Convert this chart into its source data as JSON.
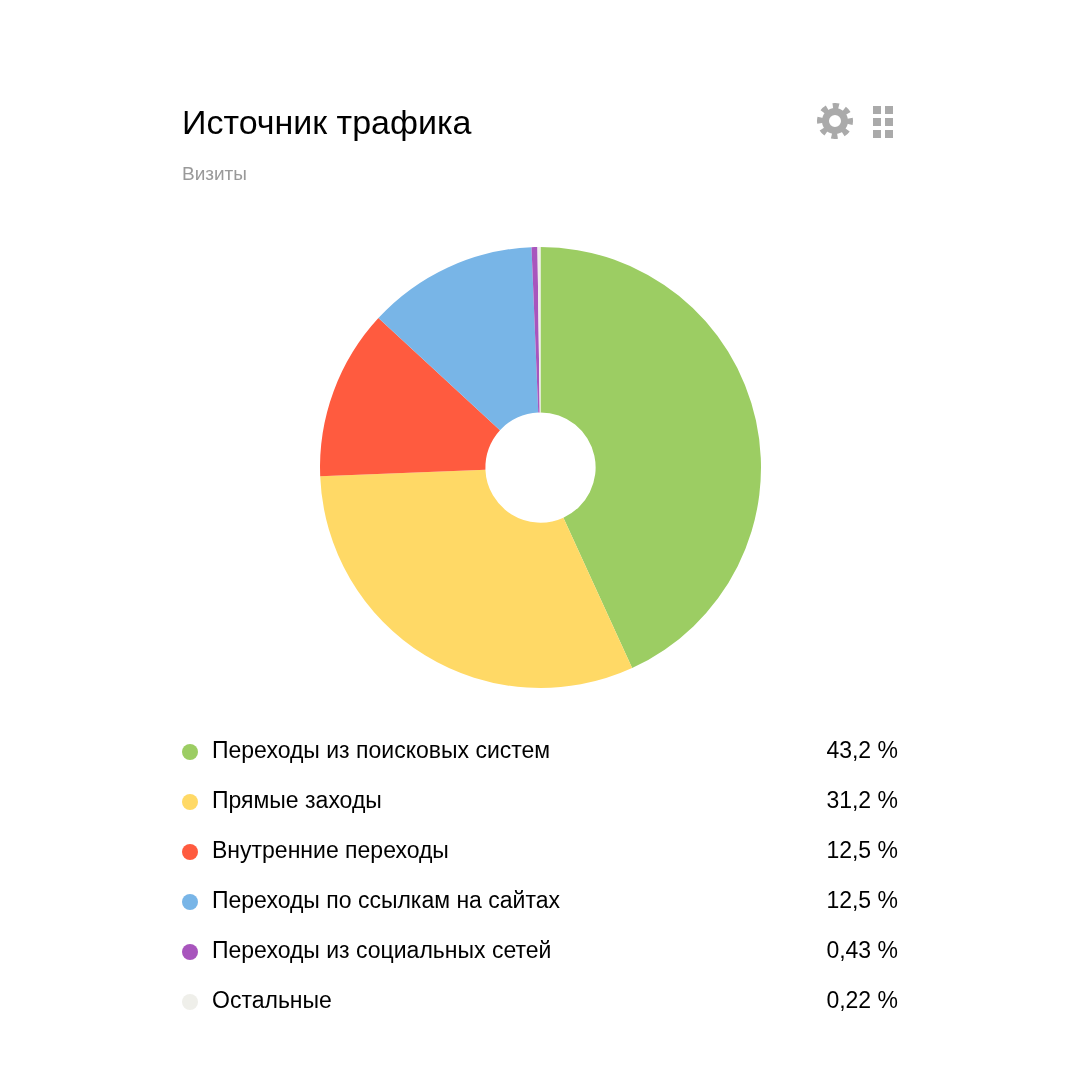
{
  "chart_data": {
    "type": "donut",
    "title": "Источник трафика",
    "subtitle": "Визиты",
    "categories": [
      "Переходы из поисковых систем",
      "Прямые заходы",
      "Внутренние переходы",
      "Переходы по ссылкам на сайтах",
      "Переходы из социальных сетей",
      "Остальные"
    ],
    "values": [
      43.2,
      31.2,
      12.5,
      12.5,
      0.43,
      0.22
    ],
    "colors": [
      "#9ccd63",
      "#ffd966",
      "#ff5b3f",
      "#78b5e7",
      "#a855bd",
      "#efefea"
    ],
    "value_labels": [
      "43,2 %",
      "31,2 %",
      "12,5 %",
      "12,5 %",
      "0,43 %",
      "0,22 %"
    ],
    "legend": "bottom"
  }
}
